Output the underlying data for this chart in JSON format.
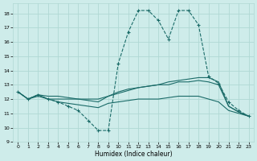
{
  "xlabel": "Humidex (Indice chaleur)",
  "xlim": [
    -0.5,
    23.5
  ],
  "ylim": [
    9,
    18.7
  ],
  "yticks": [
    9,
    10,
    11,
    12,
    13,
    14,
    15,
    16,
    17,
    18
  ],
  "xticks": [
    0,
    1,
    2,
    3,
    4,
    5,
    6,
    7,
    8,
    9,
    10,
    11,
    12,
    13,
    14,
    15,
    16,
    17,
    18,
    19,
    20,
    21,
    22,
    23
  ],
  "bg_color": "#ceecea",
  "grid_color": "#b0d8d4",
  "line_color": "#1a6b68",
  "lines": [
    {
      "x": [
        0,
        1,
        2,
        3,
        4,
        5,
        6,
        7,
        8,
        9,
        10,
        11,
        12,
        13,
        14,
        15,
        16,
        17,
        18,
        19,
        20,
        21,
        22,
        23
      ],
      "y": [
        12.5,
        12.0,
        12.3,
        12.2,
        12.2,
        12.1,
        12.0,
        12.0,
        12.0,
        12.2,
        12.5,
        12.7,
        12.8,
        12.9,
        13.0,
        13.2,
        13.3,
        13.4,
        13.5,
        13.5,
        13.2,
        11.5,
        11.1,
        10.8
      ],
      "dashed": false,
      "marker": false
    },
    {
      "x": [
        0,
        1,
        2,
        3,
        4,
        5,
        6,
        7,
        8,
        9,
        10,
        11,
        12,
        13,
        14,
        15,
        16,
        17,
        18,
        19,
        20,
        21,
        22,
        23
      ],
      "y": [
        12.5,
        12.0,
        12.3,
        12.0,
        12.0,
        12.0,
        12.0,
        11.9,
        11.8,
        12.2,
        12.4,
        12.6,
        12.8,
        12.9,
        13.0,
        13.0,
        13.2,
        13.2,
        13.3,
        13.2,
        13.0,
        11.5,
        11.1,
        10.8
      ],
      "dashed": false,
      "marker": false
    },
    {
      "x": [
        0,
        1,
        2,
        3,
        4,
        5,
        6,
        7,
        8,
        9,
        10,
        11,
        12,
        13,
        14,
        15,
        16,
        17,
        18,
        19,
        20,
        21,
        22,
        23
      ],
      "y": [
        12.5,
        12.0,
        12.2,
        12.0,
        11.8,
        11.7,
        11.6,
        11.5,
        11.4,
        11.7,
        11.8,
        11.9,
        12.0,
        12.0,
        12.0,
        12.1,
        12.2,
        12.2,
        12.2,
        12.0,
        11.8,
        11.2,
        11.0,
        10.8
      ],
      "dashed": false,
      "marker": false
    },
    {
      "x": [
        0,
        1,
        2,
        3,
        4,
        5,
        6,
        7,
        8,
        9,
        10,
        11,
        12,
        13,
        14,
        15,
        16,
        17,
        18,
        19,
        20,
        21,
        22,
        23
      ],
      "y": [
        12.5,
        12.0,
        12.3,
        12.0,
        11.8,
        11.5,
        11.2,
        10.5,
        9.8,
        9.8,
        14.5,
        16.7,
        18.2,
        18.2,
        17.5,
        16.2,
        18.2,
        18.2,
        17.2,
        13.6,
        13.1,
        11.8,
        11.2,
        10.8
      ],
      "dashed": true,
      "marker": true
    }
  ]
}
